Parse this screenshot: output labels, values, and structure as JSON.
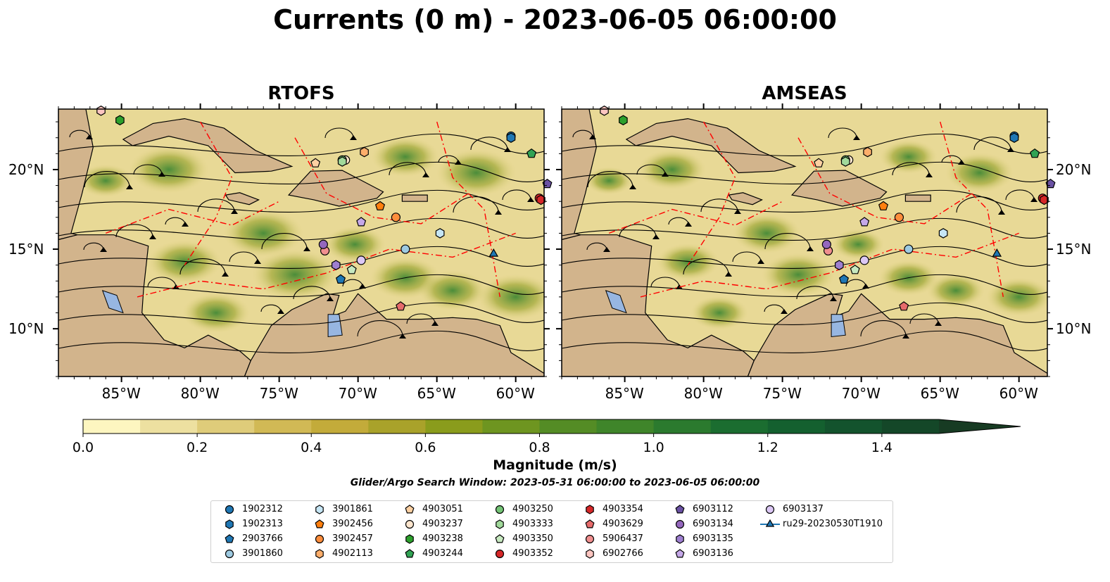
{
  "title": "Currents (0 m) - 2023-06-05 06:00:00",
  "panels": [
    {
      "id": "rtofs",
      "title": "RTOFS"
    },
    {
      "id": "amseas",
      "title": "AMSEAS"
    }
  ],
  "colors": {
    "land": "#d2b48c",
    "water": "#97b6e1",
    "eez_line": "#ff0000",
    "streamline": "#000000",
    "glider_line": "#1f77b4"
  },
  "chart_data": {
    "type": "heatmap",
    "variable": "Magnitude (m/s)",
    "colorbar": {
      "label": "Magnitude (m/s)",
      "ticks": [
        "0.0",
        "0.2",
        "0.4",
        "0.6",
        "0.8",
        "1.0",
        "1.2",
        "1.4"
      ],
      "range": [
        0,
        1.6
      ],
      "extend": "max",
      "levels": [
        0,
        0.1,
        0.2,
        0.3,
        0.4,
        0.5,
        0.6,
        0.7,
        0.8,
        0.9,
        1.0,
        1.1,
        1.2,
        1.3,
        1.4,
        1.5,
        1.6
      ],
      "colors": [
        "#fdf6c0",
        "#ede0a0",
        "#dfcc7a",
        "#d1b955",
        "#c3ab3a",
        "#a9a22a",
        "#8a9c1c",
        "#6e9520",
        "#548c25",
        "#3f852a",
        "#2b7a2e",
        "#1b6d30",
        "#14602f",
        "#13532d",
        "#144728",
        "#173b23"
      ]
    },
    "xlabel": "",
    "ylabel": "",
    "x_ticks": [
      {
        "value": -85,
        "label": "85°W"
      },
      {
        "value": -80,
        "label": "80°W"
      },
      {
        "value": -75,
        "label": "75°W"
      },
      {
        "value": -70,
        "label": "70°W"
      },
      {
        "value": -65,
        "label": "65°W"
      },
      {
        "value": -60,
        "label": "60°W"
      }
    ],
    "y_ticks": [
      {
        "value": 10,
        "label": "10°N"
      },
      {
        "value": 15,
        "label": "15°N"
      },
      {
        "value": 20,
        "label": "20°N"
      }
    ],
    "xlim": [
      -89,
      -58.2
    ],
    "ylim": [
      7,
      23.8
    ],
    "search_window": "Glider/Argo Search Window: 2023-05-31 06:00:00 to 2023-06-05 06:00:00",
    "grid": false,
    "legend_position": "bottom",
    "platforms": [
      {
        "name": "1902312",
        "marker": "circle",
        "color": "#1f77b4",
        "lon": -60.3,
        "lat": 22.1
      },
      {
        "name": "1902313",
        "marker": "hexagon",
        "color": "#1f77b4",
        "lon": -60.3,
        "lat": 22.0
      },
      {
        "name": "2903766",
        "marker": "pentagon",
        "color": "#1f77b4",
        "lon": -71.1,
        "lat": 13.1
      },
      {
        "name": "3901860",
        "marker": "circle",
        "color": "#9ecae1",
        "lon": -67.0,
        "lat": 15.0
      },
      {
        "name": "3901861",
        "marker": "hexagon",
        "color": "#c6e6f5",
        "lon": -64.8,
        "lat": 16.0
      },
      {
        "name": "3902456",
        "marker": "pentagon",
        "color": "#ff7f0e",
        "lon": -68.6,
        "lat": 17.7
      },
      {
        "name": "3902457",
        "marker": "circle",
        "color": "#fd8d3c",
        "lon": -67.6,
        "lat": 17.0
      },
      {
        "name": "4902113",
        "marker": "hexagon",
        "color": "#fdae6b",
        "lon": -69.6,
        "lat": 21.1
      },
      {
        "name": "4903051",
        "marker": "pentagon",
        "color": "#fdd0a2",
        "lon": -72.7,
        "lat": 20.4
      },
      {
        "name": "4903237",
        "marker": "circle",
        "color": "#fee6ce",
        "lon": -70.8,
        "lat": 20.6
      },
      {
        "name": "4903238",
        "marker": "hexagon",
        "color": "#2ca02c",
        "lon": -85.1,
        "lat": 23.1
      },
      {
        "name": "4903244",
        "marker": "pentagon",
        "color": "#31a354",
        "lon": -59.0,
        "lat": 21.0
      },
      {
        "name": "4903250",
        "marker": "circle",
        "color": "#74c476",
        "lon": -71.0,
        "lat": 20.6
      },
      {
        "name": "4903333",
        "marker": "hexagon",
        "color": "#a1d99b",
        "lon": -71.0,
        "lat": 20.5
      },
      {
        "name": "4903350",
        "marker": "pentagon",
        "color": "#c7e9c0",
        "lon": -70.4,
        "lat": 13.7
      },
      {
        "name": "4903352",
        "marker": "circle",
        "color": "#d62728",
        "lon": -58.5,
        "lat": 18.2
      },
      {
        "name": "4903354",
        "marker": "hexagon",
        "color": "#d62728",
        "lon": -58.4,
        "lat": 18.1
      },
      {
        "name": "4903629",
        "marker": "pentagon",
        "color": "#e66b6b",
        "lon": -67.3,
        "lat": 11.4
      },
      {
        "name": "5906437",
        "marker": "circle",
        "color": "#f08f8f",
        "lon": -72.1,
        "lat": 14.9
      },
      {
        "name": "6902766",
        "marker": "hexagon",
        "color": "#fcc5c0",
        "lon": -86.3,
        "lat": 23.7
      },
      {
        "name": "6903112",
        "marker": "pentagon",
        "color": "#6a51a3",
        "lon": -58.0,
        "lat": 19.1
      },
      {
        "name": "6903134",
        "marker": "circle",
        "color": "#9467bd",
        "lon": -72.2,
        "lat": 15.3
      },
      {
        "name": "6903135",
        "marker": "hexagon",
        "color": "#9e7fd0",
        "lon": -71.4,
        "lat": 14.0
      },
      {
        "name": "6903136",
        "marker": "pentagon",
        "color": "#c5a8e8",
        "lon": -69.8,
        "lat": 16.7
      },
      {
        "name": "6903137",
        "marker": "circle",
        "color": "#dcc8f5",
        "lon": -69.8,
        "lat": 14.3
      },
      {
        "name": "ru29-20230530T1910",
        "marker": "triangle",
        "color": "#1f77b4",
        "lon": -61.4,
        "lat": 14.7,
        "line": true
      }
    ]
  }
}
